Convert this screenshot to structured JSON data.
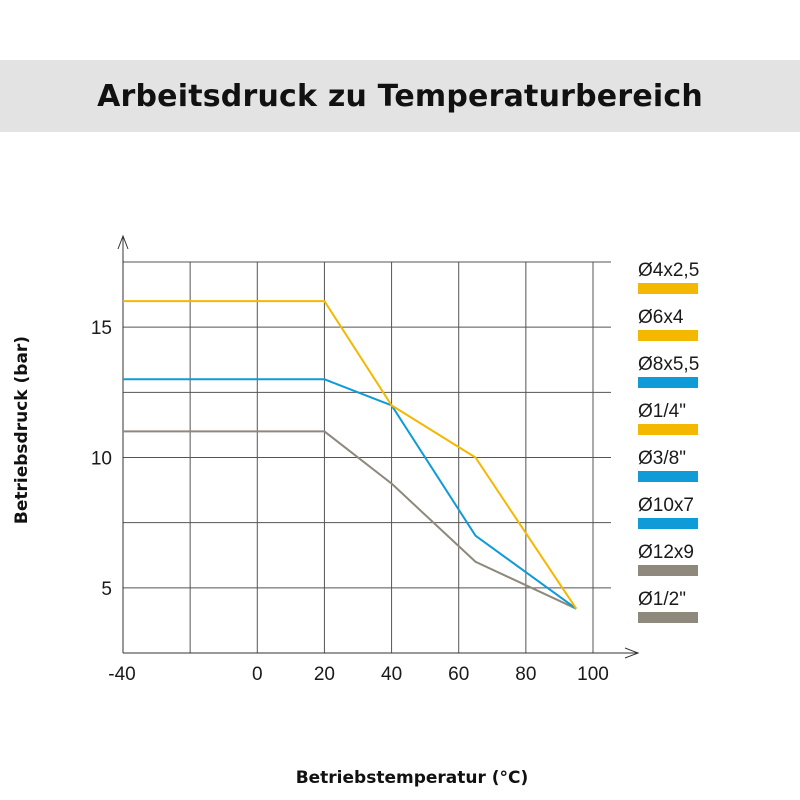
{
  "chart_data": {
    "type": "line",
    "title": "Arbeitsdruck zu Temperaturbereich",
    "xlabel": "Betriebstemperatur (°C)",
    "ylabel": "Betriebsdruck (bar)",
    "xlim": [
      -40,
      100
    ],
    "ylim": [
      2.5,
      17.5
    ],
    "x_ticks": [
      -40,
      0,
      20,
      40,
      60,
      80,
      100
    ],
    "x_tick_labels": [
      "-40",
      "0",
      "20",
      "40",
      "60",
      "80",
      "100"
    ],
    "x_grid": [
      -20,
      0,
      20,
      40,
      60,
      80,
      100
    ],
    "y_ticks": [
      5,
      10,
      15
    ],
    "y_tick_labels": [
      "5",
      "10",
      "15"
    ],
    "y_grid": [
      5,
      7.5,
      10,
      12.5,
      15,
      17.5
    ],
    "grid": true,
    "legend_position": "right",
    "series": [
      {
        "id": "yellow",
        "color": "#f5b800",
        "x": [
          -40,
          20,
          40,
          65,
          95
        ],
        "y": [
          16,
          16,
          12,
          10,
          4.2
        ]
      },
      {
        "id": "blue",
        "color": "#0f9ad8",
        "x": [
          -40,
          20,
          40,
          65,
          95
        ],
        "y": [
          13,
          13,
          12,
          7,
          4.2
        ]
      },
      {
        "id": "gray",
        "color": "#8f887c",
        "x": [
          -40,
          20,
          40,
          65,
          95
        ],
        "y": [
          11,
          11,
          9,
          6,
          4.2
        ]
      }
    ],
    "legend": [
      {
        "label": "Ø4x2,5",
        "color": "#f5b800"
      },
      {
        "label": "Ø6x4",
        "color": "#f5b800"
      },
      {
        "label": "Ø8x5,5",
        "color": "#0f9ad8"
      },
      {
        "label": "Ø1/4\"",
        "color": "#f5b800"
      },
      {
        "label": "Ø3/8\"",
        "color": "#0f9ad8"
      },
      {
        "label": "Ø10x7",
        "color": "#0f9ad8"
      },
      {
        "label": "Ø12x9",
        "color": "#8f887c"
      },
      {
        "label": "Ø1/2\"",
        "color": "#8f887c"
      }
    ]
  }
}
